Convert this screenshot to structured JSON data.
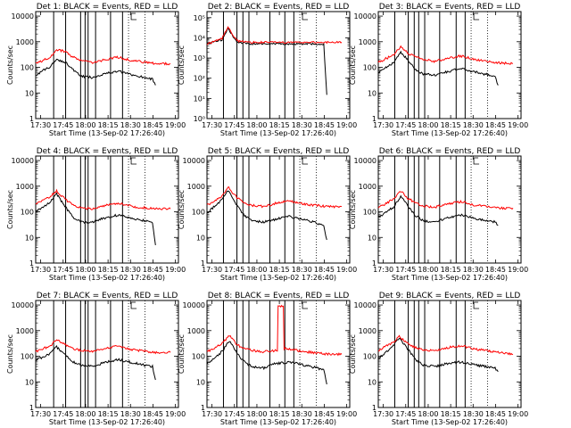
{
  "x_ticks": [
    "17:30",
    "17:45",
    "18:00",
    "18:15",
    "18:30",
    "18:45",
    "19:00"
  ],
  "xlabel": "Start Time (13-Sep-02 17:26:40)",
  "ylabel": "Counts/sec",
  "colors": {
    "events": "#000000",
    "lld": "#ff0000"
  },
  "chart_data": [
    {
      "title": "Det 1: BLACK = Events, RED = LLD",
      "type": "line",
      "yscale": "log",
      "xlim": [
        "17:26:40",
        "19:02:00"
      ],
      "y_ticks": [
        "1",
        "10",
        "100",
        "1000",
        "10000"
      ],
      "ylim": [
        1,
        15000
      ],
      "series": [
        {
          "name": "Events",
          "color": "#000000",
          "x_min": [
            0,
            10,
            14,
            20,
            25,
            30,
            38,
            45,
            55,
            65,
            78,
            80
          ],
          "values": [
            50,
            110,
            200,
            160,
            80,
            45,
            40,
            55,
            70,
            50,
            35,
            20
          ]
        },
        {
          "name": "LLD",
          "color": "#ff0000",
          "x_min": [
            0,
            10,
            14,
            20,
            25,
            30,
            38,
            45,
            55,
            65,
            80,
            90
          ],
          "values": [
            140,
            250,
            500,
            400,
            250,
            190,
            150,
            190,
            250,
            180,
            140,
            140
          ]
        }
      ]
    },
    {
      "title": "Det 2: BLACK = Events, RED = LLD",
      "type": "line",
      "yscale": "log",
      "xlim": [
        "17:26:40",
        "19:02:00"
      ],
      "y_ticks": [
        "10⁰",
        "10¹",
        "10²",
        "10³",
        "10⁴",
        "10⁵"
      ],
      "ylim": [
        1,
        200000
      ],
      "series": [
        {
          "name": "Events",
          "color": "#000000",
          "x_min": [
            0,
            10,
            14,
            20,
            30,
            45,
            60,
            78,
            80
          ],
          "values": [
            5000,
            8000,
            30000,
            6000,
            5000,
            5000,
            5000,
            5000,
            15
          ]
        },
        {
          "name": "LLD",
          "color": "#ff0000",
          "x_min": [
            0,
            10,
            14,
            20,
            30,
            45,
            60,
            80,
            90
          ],
          "values": [
            5000,
            9000,
            35000,
            7000,
            6000,
            6000,
            6000,
            6000,
            6000
          ]
        }
      ]
    },
    {
      "title": "Det 3: BLACK = Events, RED = LLD",
      "type": "line",
      "yscale": "log",
      "xlim": [
        "17:26:40",
        "19:02:00"
      ],
      "y_ticks": [
        "1",
        "10",
        "100",
        "1000",
        "10000"
      ],
      "ylim": [
        1,
        15000
      ],
      "series": [
        {
          "name": "Events",
          "color": "#000000",
          "x_min": [
            0,
            10,
            15,
            20,
            25,
            30,
            38,
            45,
            55,
            65,
            78,
            80
          ],
          "values": [
            60,
            150,
            400,
            180,
            80,
            55,
            50,
            65,
            90,
            65,
            45,
            20
          ]
        },
        {
          "name": "LLD",
          "color": "#ff0000",
          "x_min": [
            0,
            10,
            15,
            20,
            25,
            30,
            38,
            45,
            55,
            65,
            80,
            90
          ],
          "values": [
            160,
            300,
            650,
            350,
            250,
            200,
            170,
            220,
            280,
            200,
            150,
            140
          ]
        }
      ]
    },
    {
      "title": "Det 4: BLACK = Events, RED = LLD",
      "type": "line",
      "yscale": "log",
      "xlim": [
        "17:26:40",
        "19:02:00"
      ],
      "y_ticks": [
        "1",
        "10",
        "100",
        "1000",
        "10000"
      ],
      "ylim": [
        1,
        15000
      ],
      "series": [
        {
          "name": "Events",
          "color": "#000000",
          "x_min": [
            0,
            10,
            14,
            20,
            25,
            30,
            38,
            45,
            55,
            65,
            78,
            80
          ],
          "values": [
            100,
            250,
            500,
            150,
            60,
            40,
            40,
            55,
            75,
            55,
            40,
            5
          ]
        },
        {
          "name": "LLD",
          "color": "#ff0000",
          "x_min": [
            0,
            10,
            14,
            20,
            25,
            30,
            38,
            45,
            55,
            65,
            80,
            90
          ],
          "values": [
            200,
            400,
            650,
            300,
            180,
            140,
            130,
            170,
            220,
            160,
            130,
            130
          ]
        }
      ]
    },
    {
      "title": "Det 5: BLACK = Events, RED = LLD",
      "type": "line",
      "yscale": "log",
      "xlim": [
        "17:26:40",
        "19:02:00"
      ],
      "y_ticks": [
        "1",
        "10",
        "100",
        "1000",
        "10000"
      ],
      "ylim": [
        1,
        15000
      ],
      "series": [
        {
          "name": "Events",
          "color": "#000000",
          "x_min": [
            0,
            10,
            14,
            20,
            25,
            30,
            38,
            45,
            55,
            65,
            78,
            80
          ],
          "values": [
            90,
            300,
            700,
            180,
            70,
            45,
            40,
            50,
            65,
            50,
            30,
            8
          ]
        },
        {
          "name": "LLD",
          "color": "#ff0000",
          "x_min": [
            0,
            10,
            14,
            20,
            25,
            30,
            38,
            45,
            55,
            65,
            80,
            90
          ],
          "values": [
            180,
            400,
            950,
            350,
            220,
            180,
            160,
            210,
            270,
            200,
            160,
            160
          ]
        }
      ]
    },
    {
      "title": "Det 6: BLACK = Events, RED = LLD",
      "type": "line",
      "yscale": "log",
      "xlim": [
        "17:26:40",
        "19:02:00"
      ],
      "y_ticks": [
        "1",
        "10",
        "100",
        "1000",
        "10000"
      ],
      "ylim": [
        1,
        15000
      ],
      "series": [
        {
          "name": "Events",
          "color": "#000000",
          "x_min": [
            0,
            10,
            15,
            20,
            25,
            30,
            38,
            45,
            55,
            65,
            78,
            80
          ],
          "values": [
            60,
            150,
            400,
            160,
            70,
            45,
            40,
            55,
            75,
            55,
            40,
            30
          ]
        },
        {
          "name": "LLD",
          "color": "#ff0000",
          "x_min": [
            0,
            10,
            15,
            20,
            25,
            30,
            38,
            45,
            55,
            65,
            80,
            90
          ],
          "values": [
            150,
            300,
            650,
            330,
            220,
            170,
            150,
            200,
            250,
            180,
            140,
            140
          ]
        }
      ]
    },
    {
      "title": "Det 7: BLACK = Events, RED = LLD",
      "type": "line",
      "yscale": "log",
      "xlim": [
        "17:26:40",
        "19:02:00"
      ],
      "y_ticks": [
        "1",
        "10",
        "100",
        "1000",
        "10000"
      ],
      "ylim": [
        1,
        15000
      ],
      "series": [
        {
          "name": "Events",
          "color": "#000000",
          "x_min": [
            0,
            10,
            14,
            20,
            25,
            30,
            38,
            45,
            55,
            65,
            78,
            80
          ],
          "values": [
            70,
            130,
            230,
            110,
            60,
            45,
            40,
            55,
            75,
            55,
            40,
            12
          ]
        },
        {
          "name": "LLD",
          "color": "#ff0000",
          "x_min": [
            0,
            10,
            14,
            20,
            25,
            30,
            38,
            45,
            55,
            65,
            80,
            90
          ],
          "values": [
            150,
            260,
            450,
            280,
            200,
            170,
            150,
            200,
            260,
            180,
            140,
            140
          ]
        }
      ]
    },
    {
      "title": "Det 8: BLACK = Events, RED = LLD",
      "type": "line",
      "yscale": "log",
      "xlim": [
        "17:26:40",
        "19:02:00"
      ],
      "y_ticks": [
        "1",
        "10",
        "100",
        "1000",
        "10000"
      ],
      "ylim": [
        1,
        15000
      ],
      "series": [
        {
          "name": "Events",
          "color": "#000000",
          "x_min": [
            0,
            10,
            15,
            20,
            25,
            30,
            38,
            45,
            55,
            65,
            78,
            80
          ],
          "values": [
            50,
            150,
            400,
            130,
            60,
            40,
            35,
            50,
            60,
            45,
            30,
            8
          ]
        },
        {
          "name": "LLD",
          "color": "#ff0000",
          "x_min": [
            0,
            10,
            15,
            20,
            25,
            30,
            38,
            47,
            47.5,
            51,
            51.5,
            60,
            70,
            80,
            90
          ],
          "values": [
            150,
            300,
            650,
            280,
            200,
            170,
            150,
            170,
            9000,
            9000,
            200,
            170,
            140,
            120,
            120
          ]
        }
      ]
    },
    {
      "title": "Det 9: BLACK = Events, RED = LLD",
      "type": "line",
      "yscale": "log",
      "xlim": [
        "17:26:40",
        "19:02:00"
      ],
      "y_ticks": [
        "1",
        "10",
        "100",
        "1000",
        "10000"
      ],
      "ylim": [
        1,
        15000
      ],
      "series": [
        {
          "name": "Events",
          "color": "#000000",
          "x_min": [
            0,
            10,
            14,
            20,
            25,
            30,
            38,
            45,
            55,
            65,
            78,
            80
          ],
          "values": [
            80,
            250,
            550,
            180,
            70,
            45,
            40,
            50,
            60,
            45,
            35,
            25
          ]
        },
        {
          "name": "LLD",
          "color": "#ff0000",
          "x_min": [
            0,
            10,
            14,
            20,
            25,
            30,
            38,
            45,
            55,
            65,
            80,
            90
          ],
          "values": [
            170,
            350,
            600,
            300,
            220,
            180,
            160,
            210,
            260,
            190,
            140,
            120
          ]
        }
      ]
    }
  ]
}
